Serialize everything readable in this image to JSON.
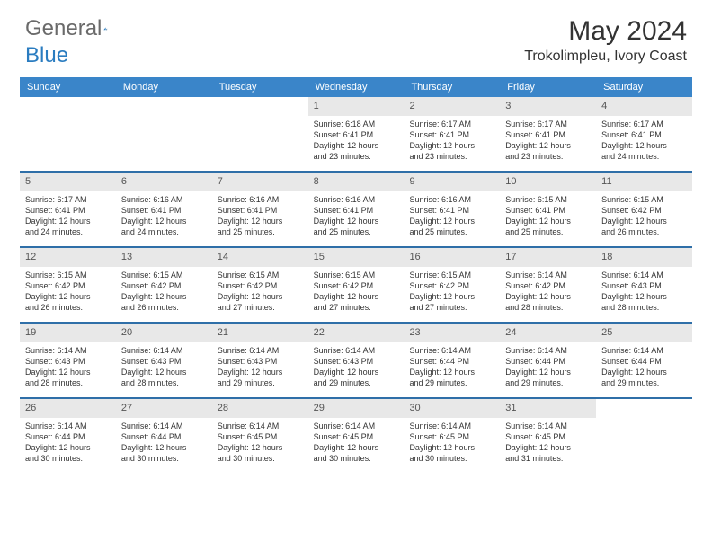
{
  "brand": {
    "part1": "General",
    "part2": "Blue"
  },
  "title": "May 2024",
  "location": "Trokolimpleu, Ivory Coast",
  "colors": {
    "header_bg": "#3a85c9",
    "week_divider": "#2f6fa8",
    "daynum_bg": "#e8e8e8",
    "logo_gray": "#6a6a6a",
    "logo_blue": "#2a7cc0"
  },
  "day_labels": [
    "Sunday",
    "Monday",
    "Tuesday",
    "Wednesday",
    "Thursday",
    "Friday",
    "Saturday"
  ],
  "weeks": [
    [
      {
        "blank": true
      },
      {
        "blank": true
      },
      {
        "blank": true
      },
      {
        "num": "1",
        "sunrise": "Sunrise: 6:18 AM",
        "sunset": "Sunset: 6:41 PM",
        "day1": "Daylight: 12 hours",
        "day2": "and 23 minutes."
      },
      {
        "num": "2",
        "sunrise": "Sunrise: 6:17 AM",
        "sunset": "Sunset: 6:41 PM",
        "day1": "Daylight: 12 hours",
        "day2": "and 23 minutes."
      },
      {
        "num": "3",
        "sunrise": "Sunrise: 6:17 AM",
        "sunset": "Sunset: 6:41 PM",
        "day1": "Daylight: 12 hours",
        "day2": "and 23 minutes."
      },
      {
        "num": "4",
        "sunrise": "Sunrise: 6:17 AM",
        "sunset": "Sunset: 6:41 PM",
        "day1": "Daylight: 12 hours",
        "day2": "and 24 minutes."
      }
    ],
    [
      {
        "num": "5",
        "sunrise": "Sunrise: 6:17 AM",
        "sunset": "Sunset: 6:41 PM",
        "day1": "Daylight: 12 hours",
        "day2": "and 24 minutes."
      },
      {
        "num": "6",
        "sunrise": "Sunrise: 6:16 AM",
        "sunset": "Sunset: 6:41 PM",
        "day1": "Daylight: 12 hours",
        "day2": "and 24 minutes."
      },
      {
        "num": "7",
        "sunrise": "Sunrise: 6:16 AM",
        "sunset": "Sunset: 6:41 PM",
        "day1": "Daylight: 12 hours",
        "day2": "and 25 minutes."
      },
      {
        "num": "8",
        "sunrise": "Sunrise: 6:16 AM",
        "sunset": "Sunset: 6:41 PM",
        "day1": "Daylight: 12 hours",
        "day2": "and 25 minutes."
      },
      {
        "num": "9",
        "sunrise": "Sunrise: 6:16 AM",
        "sunset": "Sunset: 6:41 PM",
        "day1": "Daylight: 12 hours",
        "day2": "and 25 minutes."
      },
      {
        "num": "10",
        "sunrise": "Sunrise: 6:15 AM",
        "sunset": "Sunset: 6:41 PM",
        "day1": "Daylight: 12 hours",
        "day2": "and 25 minutes."
      },
      {
        "num": "11",
        "sunrise": "Sunrise: 6:15 AM",
        "sunset": "Sunset: 6:42 PM",
        "day1": "Daylight: 12 hours",
        "day2": "and 26 minutes."
      }
    ],
    [
      {
        "num": "12",
        "sunrise": "Sunrise: 6:15 AM",
        "sunset": "Sunset: 6:42 PM",
        "day1": "Daylight: 12 hours",
        "day2": "and 26 minutes."
      },
      {
        "num": "13",
        "sunrise": "Sunrise: 6:15 AM",
        "sunset": "Sunset: 6:42 PM",
        "day1": "Daylight: 12 hours",
        "day2": "and 26 minutes."
      },
      {
        "num": "14",
        "sunrise": "Sunrise: 6:15 AM",
        "sunset": "Sunset: 6:42 PM",
        "day1": "Daylight: 12 hours",
        "day2": "and 27 minutes."
      },
      {
        "num": "15",
        "sunrise": "Sunrise: 6:15 AM",
        "sunset": "Sunset: 6:42 PM",
        "day1": "Daylight: 12 hours",
        "day2": "and 27 minutes."
      },
      {
        "num": "16",
        "sunrise": "Sunrise: 6:15 AM",
        "sunset": "Sunset: 6:42 PM",
        "day1": "Daylight: 12 hours",
        "day2": "and 27 minutes."
      },
      {
        "num": "17",
        "sunrise": "Sunrise: 6:14 AM",
        "sunset": "Sunset: 6:42 PM",
        "day1": "Daylight: 12 hours",
        "day2": "and 28 minutes."
      },
      {
        "num": "18",
        "sunrise": "Sunrise: 6:14 AM",
        "sunset": "Sunset: 6:43 PM",
        "day1": "Daylight: 12 hours",
        "day2": "and 28 minutes."
      }
    ],
    [
      {
        "num": "19",
        "sunrise": "Sunrise: 6:14 AM",
        "sunset": "Sunset: 6:43 PM",
        "day1": "Daylight: 12 hours",
        "day2": "and 28 minutes."
      },
      {
        "num": "20",
        "sunrise": "Sunrise: 6:14 AM",
        "sunset": "Sunset: 6:43 PM",
        "day1": "Daylight: 12 hours",
        "day2": "and 28 minutes."
      },
      {
        "num": "21",
        "sunrise": "Sunrise: 6:14 AM",
        "sunset": "Sunset: 6:43 PM",
        "day1": "Daylight: 12 hours",
        "day2": "and 29 minutes."
      },
      {
        "num": "22",
        "sunrise": "Sunrise: 6:14 AM",
        "sunset": "Sunset: 6:43 PM",
        "day1": "Daylight: 12 hours",
        "day2": "and 29 minutes."
      },
      {
        "num": "23",
        "sunrise": "Sunrise: 6:14 AM",
        "sunset": "Sunset: 6:44 PM",
        "day1": "Daylight: 12 hours",
        "day2": "and 29 minutes."
      },
      {
        "num": "24",
        "sunrise": "Sunrise: 6:14 AM",
        "sunset": "Sunset: 6:44 PM",
        "day1": "Daylight: 12 hours",
        "day2": "and 29 minutes."
      },
      {
        "num": "25",
        "sunrise": "Sunrise: 6:14 AM",
        "sunset": "Sunset: 6:44 PM",
        "day1": "Daylight: 12 hours",
        "day2": "and 29 minutes."
      }
    ],
    [
      {
        "num": "26",
        "sunrise": "Sunrise: 6:14 AM",
        "sunset": "Sunset: 6:44 PM",
        "day1": "Daylight: 12 hours",
        "day2": "and 30 minutes."
      },
      {
        "num": "27",
        "sunrise": "Sunrise: 6:14 AM",
        "sunset": "Sunset: 6:44 PM",
        "day1": "Daylight: 12 hours",
        "day2": "and 30 minutes."
      },
      {
        "num": "28",
        "sunrise": "Sunrise: 6:14 AM",
        "sunset": "Sunset: 6:45 PM",
        "day1": "Daylight: 12 hours",
        "day2": "and 30 minutes."
      },
      {
        "num": "29",
        "sunrise": "Sunrise: 6:14 AM",
        "sunset": "Sunset: 6:45 PM",
        "day1": "Daylight: 12 hours",
        "day2": "and 30 minutes."
      },
      {
        "num": "30",
        "sunrise": "Sunrise: 6:14 AM",
        "sunset": "Sunset: 6:45 PM",
        "day1": "Daylight: 12 hours",
        "day2": "and 30 minutes."
      },
      {
        "num": "31",
        "sunrise": "Sunrise: 6:14 AM",
        "sunset": "Sunset: 6:45 PM",
        "day1": "Daylight: 12 hours",
        "day2": "and 31 minutes."
      },
      {
        "blank": true
      }
    ]
  ]
}
